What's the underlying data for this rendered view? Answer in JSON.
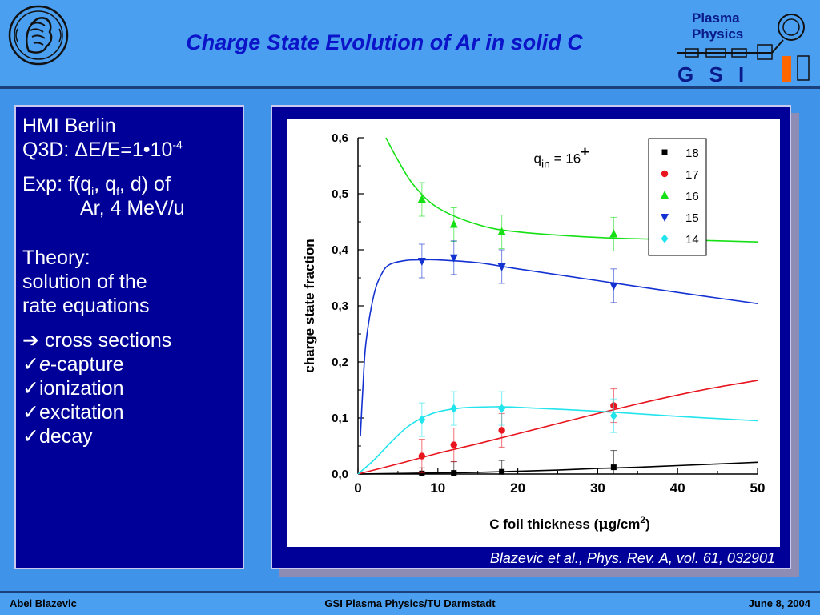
{
  "slide": {
    "title": "Charge State Evolution of Ar in solid C"
  },
  "logo": {
    "line1": "Plasma",
    "line2": "Physics",
    "gsi": "G S I"
  },
  "left_panel": {
    "line1": "HMI Berlin",
    "q3d_prefix": "Q3D: ΔE/E=1•10",
    "q3d_exp": "-4",
    "exp_prefix": "Exp: f(q",
    "exp_sub_i": "i",
    "exp_mid": ", q",
    "exp_sub_f": "f",
    "exp_suffix": ", d) of",
    "exp_line2": "Ar, 4 MeV/u",
    "theory1": "Theory:",
    "theory2": "solution of the",
    "theory3": "rate equations",
    "arrow": "➔",
    "arrow_text": " cross sections",
    "check": "✓",
    "check1_italic": "e",
    "check1_rest": "-capture",
    "check2": "ionization",
    "check3": "excitation",
    "check4": "decay"
  },
  "citation": "Blazevic et al., Phys. Rev. A, vol. 61, 032901",
  "footer": {
    "left": "Abel Blazevic",
    "center": "GSI Plasma Physics/TU Darmstadt",
    "right": "June 8,  2004"
  },
  "chart_data": {
    "type": "scatter",
    "xlabel_prefix": "C foil thickness (",
    "xlabel_mu": "μ",
    "xlabel_unit": "g/cm",
    "xlabel_sup": "2",
    "xlabel_suffix": ")",
    "ylabel": "charge state fraction",
    "xlim": [
      0,
      50
    ],
    "ylim": [
      0,
      0.6
    ],
    "x_ticks": [
      0,
      10,
      20,
      30,
      40,
      50
    ],
    "x_tick_labels": [
      "0",
      "10",
      "20",
      "30",
      "40",
      "50"
    ],
    "y_ticks": [
      0,
      0.1,
      0.2,
      0.3,
      0.4,
      0.5,
      0.6
    ],
    "y_tick_labels": [
      "0,0",
      "0,1",
      "0,2",
      "0,3",
      "0,4",
      "0,5",
      "0,6"
    ],
    "annotation": {
      "prefix": "q",
      "sub": "in",
      "mid": " = 16",
      "sup": "+",
      "x": 22,
      "y": 0.555
    },
    "legend_position": "top-right",
    "series": [
      {
        "name": "18",
        "color": "#000000",
        "marker": "square",
        "x": [
          8,
          12,
          18,
          32
        ],
        "y": [
          0.001,
          0.002,
          0.004,
          0.012
        ],
        "err": [
          0.01,
          0.02,
          0.02,
          0.03
        ],
        "fit": [
          [
            0,
            0
          ],
          [
            5,
            0.001
          ],
          [
            10,
            0.002
          ],
          [
            15,
            0.003
          ],
          [
            20,
            0.005
          ],
          [
            25,
            0.007
          ],
          [
            30,
            0.01
          ],
          [
            35,
            0.012
          ],
          [
            40,
            0.015
          ],
          [
            45,
            0.018
          ],
          [
            50,
            0.021
          ]
        ]
      },
      {
        "name": "17",
        "color": "#e8141e",
        "marker": "circle",
        "x": [
          8,
          12,
          18,
          32
        ],
        "y": [
          0.032,
          0.052,
          0.078,
          0.122
        ],
        "err": [
          0.03,
          0.03,
          0.03,
          0.03
        ],
        "fit": [
          [
            0,
            0
          ],
          [
            5,
            0.018
          ],
          [
            10,
            0.037
          ],
          [
            15,
            0.054
          ],
          [
            20,
            0.072
          ],
          [
            25,
            0.09
          ],
          [
            30,
            0.108
          ],
          [
            35,
            0.125
          ],
          [
            40,
            0.141
          ],
          [
            45,
            0.155
          ],
          [
            50,
            0.167
          ]
        ]
      },
      {
        "name": "16",
        "color": "#14e014",
        "marker": "triangle-up",
        "x": [
          8,
          12,
          18,
          32
        ],
        "y": [
          0.49,
          0.445,
          0.432,
          0.428
        ],
        "err": [
          0.03,
          0.03,
          0.03,
          0.03
        ],
        "fit": [
          [
            3.5,
            0.6
          ],
          [
            5,
            0.56
          ],
          [
            7,
            0.515
          ],
          [
            10,
            0.475
          ],
          [
            15,
            0.445
          ],
          [
            20,
            0.432
          ],
          [
            30,
            0.422
          ],
          [
            40,
            0.418
          ],
          [
            50,
            0.414
          ]
        ]
      },
      {
        "name": "15",
        "color": "#1432d2",
        "marker": "triangle-down",
        "x": [
          8,
          12,
          18,
          32
        ],
        "y": [
          0.38,
          0.386,
          0.37,
          0.336
        ],
        "err": [
          0.03,
          0.03,
          0.03,
          0.03
        ],
        "fit": [
          [
            0.3,
            0.067
          ],
          [
            0.6,
            0.15
          ],
          [
            1,
            0.235
          ],
          [
            2,
            0.32
          ],
          [
            3,
            0.358
          ],
          [
            4,
            0.374
          ],
          [
            6,
            0.381
          ],
          [
            8,
            0.382
          ],
          [
            10,
            0.382
          ],
          [
            15,
            0.377
          ],
          [
            20,
            0.366
          ],
          [
            30,
            0.345
          ],
          [
            40,
            0.324
          ],
          [
            50,
            0.304
          ]
        ]
      },
      {
        "name": "14",
        "color": "#22e4ec",
        "marker": "diamond",
        "x": [
          8,
          12,
          18,
          32
        ],
        "y": [
          0.097,
          0.117,
          0.117,
          0.104
        ],
        "err": [
          0.03,
          0.03,
          0.03,
          0.03
        ],
        "fit": [
          [
            0,
            0
          ],
          [
            2,
            0.025
          ],
          [
            4,
            0.055
          ],
          [
            6,
            0.082
          ],
          [
            8,
            0.1
          ],
          [
            10,
            0.111
          ],
          [
            13,
            0.118
          ],
          [
            17,
            0.12
          ],
          [
            20,
            0.119
          ],
          [
            30,
            0.112
          ],
          [
            40,
            0.103
          ],
          [
            50,
            0.095
          ]
        ]
      }
    ]
  }
}
